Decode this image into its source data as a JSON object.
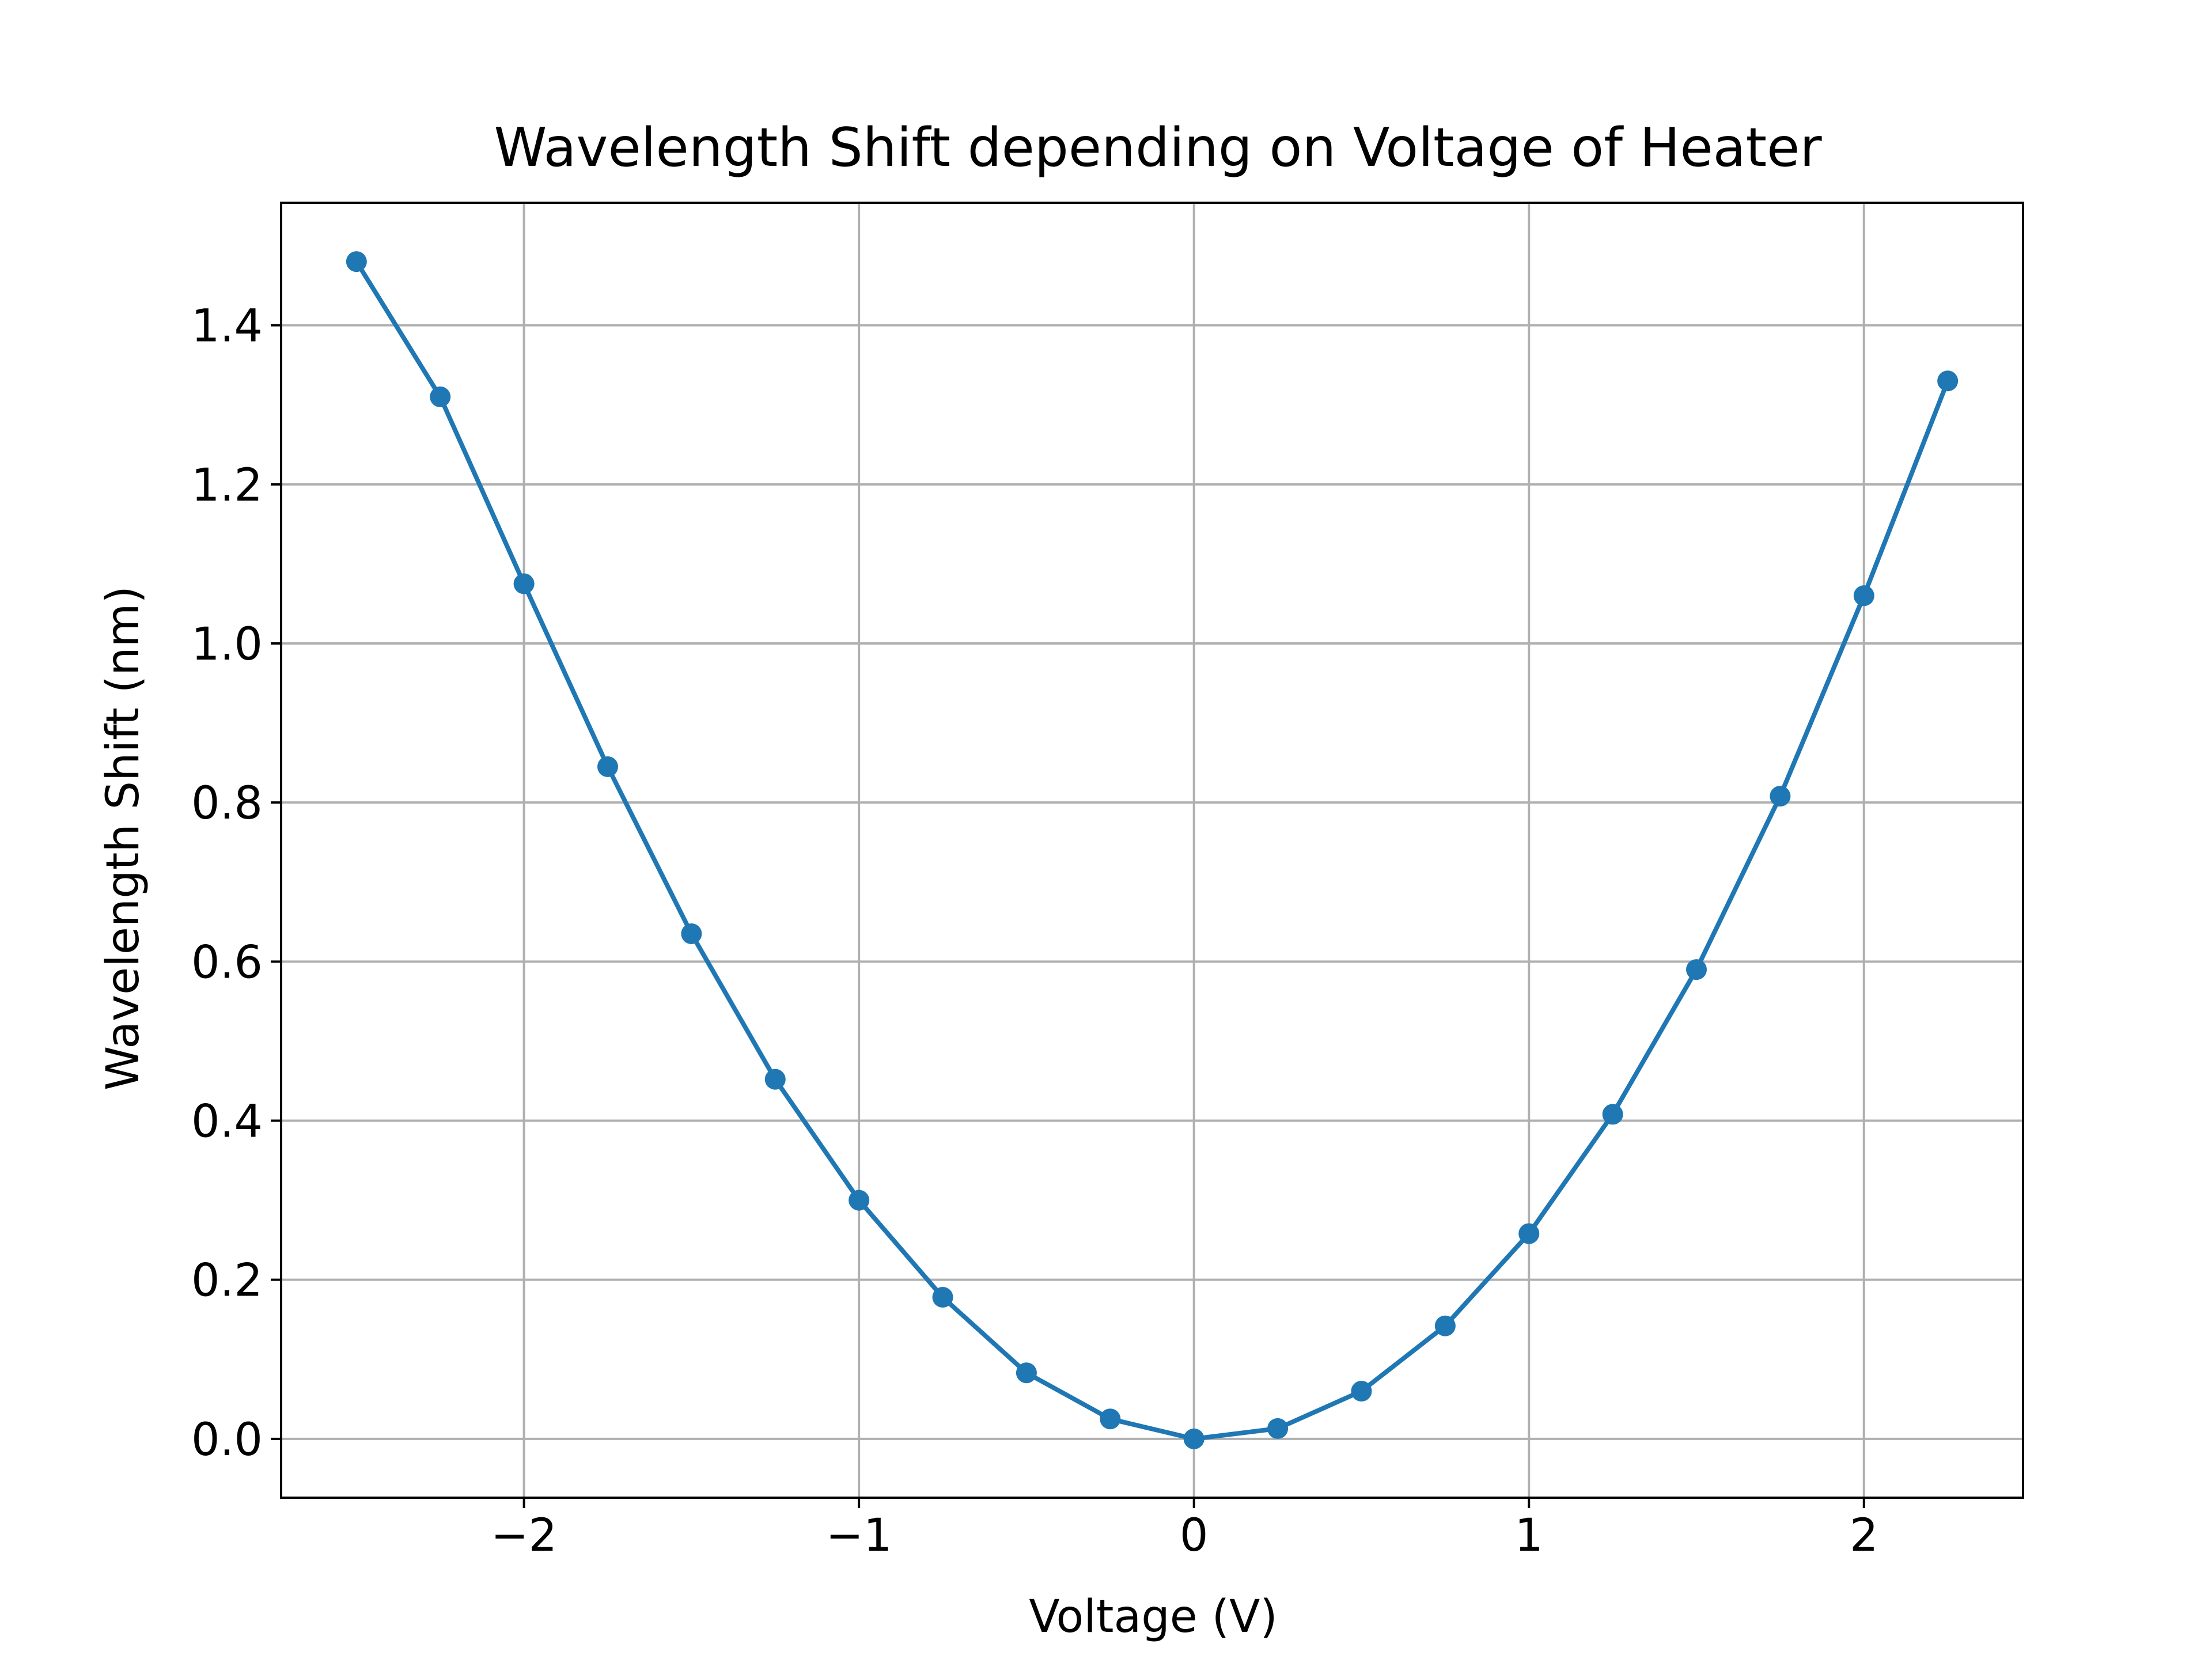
{
  "chart_data": {
    "type": "line",
    "title": "Wavelength Shift depending on Voltage of Heater",
    "xlabel": "Voltage (V)",
    "ylabel": "Wavelength Shift (nm)",
    "xlim": [
      -2.725,
      2.475
    ],
    "ylim": [
      -0.074,
      1.554
    ],
    "xticks": [
      {
        "value": -2,
        "label": "−2"
      },
      {
        "value": -1,
        "label": "−1"
      },
      {
        "value": 0,
        "label": "0"
      },
      {
        "value": 1,
        "label": "1"
      },
      {
        "value": 2,
        "label": "2"
      }
    ],
    "yticks": [
      {
        "value": 0.0,
        "label": "0.0"
      },
      {
        "value": 0.2,
        "label": "0.2"
      },
      {
        "value": 0.4,
        "label": "0.4"
      },
      {
        "value": 0.6,
        "label": "0.6"
      },
      {
        "value": 0.8,
        "label": "0.8"
      },
      {
        "value": 1.0,
        "label": "1.0"
      },
      {
        "value": 1.2,
        "label": "1.2"
      },
      {
        "value": 1.4,
        "label": "1.4"
      }
    ],
    "grid": true,
    "marker": "circle",
    "series": [
      {
        "color": "#1f77b4",
        "x": [
          -2.5,
          -2.25,
          -2.0,
          -1.75,
          -1.5,
          -1.25,
          -1.0,
          -0.75,
          -0.5,
          -0.25,
          0.0,
          0.25,
          0.5,
          0.75,
          1.0,
          1.25,
          1.5,
          1.75,
          2.0,
          2.25
        ],
        "y": [
          1.48,
          1.31,
          1.075,
          0.845,
          0.635,
          0.452,
          0.3,
          0.178,
          0.083,
          0.025,
          0.0,
          0.013,
          0.06,
          0.142,
          0.258,
          0.408,
          0.59,
          0.808,
          1.06,
          1.33
        ]
      }
    ]
  }
}
